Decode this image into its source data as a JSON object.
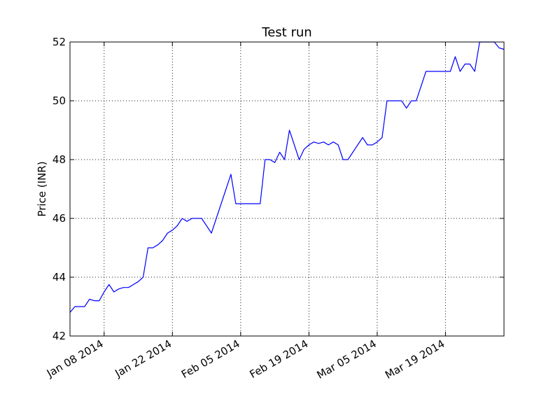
{
  "chart_data": {
    "type": "line",
    "title": "Test run",
    "xlabel": "",
    "ylabel": "Price (INR)",
    "ylim": [
      42,
      52
    ],
    "xlim": [
      "2014-01-01",
      "2014-03-31"
    ],
    "yticks": [
      "42",
      "44",
      "46",
      "48",
      "50",
      "52"
    ],
    "xticks": [
      "2014-01-08",
      "2014-01-22",
      "2014-02-05",
      "2014-02-19",
      "2014-03-05",
      "2014-03-19"
    ],
    "xtick_labels": [
      "Jan 08 2014",
      "Jan 22 2014",
      "Feb 05 2014",
      "Feb 19 2014",
      "Mar 05 2014",
      "Mar 19 2014"
    ],
    "grid": true,
    "legend": false,
    "color": "#0000ff",
    "series": [
      {
        "x": [
          "2014-01-01",
          "2014-01-02",
          "2014-01-03",
          "2014-01-04",
          "2014-01-05",
          "2014-01-06",
          "2014-01-07",
          "2014-01-08",
          "2014-01-09",
          "2014-01-10",
          "2014-01-11",
          "2014-01-12",
          "2014-01-13",
          "2014-01-14",
          "2014-01-15",
          "2014-01-16",
          "2014-01-17",
          "2014-01-18",
          "2014-01-19",
          "2014-01-20",
          "2014-01-21",
          "2014-01-22",
          "2014-01-23",
          "2014-01-24",
          "2014-01-25",
          "2014-01-26",
          "2014-01-27",
          "2014-01-28",
          "2014-01-29",
          "2014-01-30",
          "2014-01-31",
          "2014-02-01",
          "2014-02-02",
          "2014-02-03",
          "2014-02-04",
          "2014-02-05",
          "2014-02-06",
          "2014-02-07",
          "2014-02-08",
          "2014-02-09",
          "2014-02-10",
          "2014-02-11",
          "2014-02-12",
          "2014-02-13",
          "2014-02-14",
          "2014-02-15",
          "2014-02-16",
          "2014-02-17",
          "2014-02-18",
          "2014-02-19",
          "2014-02-20",
          "2014-02-21",
          "2014-02-22",
          "2014-02-23",
          "2014-02-24",
          "2014-02-25",
          "2014-02-26",
          "2014-02-27",
          "2014-02-28",
          "2014-03-01",
          "2014-03-02",
          "2014-03-03",
          "2014-03-04",
          "2014-03-05",
          "2014-03-06",
          "2014-03-07",
          "2014-03-08",
          "2014-03-09",
          "2014-03-10",
          "2014-03-11",
          "2014-03-12",
          "2014-03-13",
          "2014-03-14",
          "2014-03-15",
          "2014-03-16",
          "2014-03-17",
          "2014-03-18",
          "2014-03-19",
          "2014-03-20",
          "2014-03-21",
          "2014-03-22",
          "2014-03-23",
          "2014-03-24",
          "2014-03-25",
          "2014-03-26",
          "2014-03-27",
          "2014-03-28",
          "2014-03-29",
          "2014-03-30",
          "2014-03-31"
        ],
        "y": [
          42.8,
          43.0,
          43.0,
          43.0,
          43.25,
          43.2,
          43.2,
          43.5,
          43.75,
          43.5,
          43.6,
          43.65,
          43.65,
          43.75,
          43.85,
          44.0,
          45.0,
          45.0,
          45.1,
          45.25,
          45.5,
          45.6,
          45.75,
          46.0,
          45.9,
          46.0,
          46.0,
          46.0,
          45.75,
          45.5,
          46.0,
          46.5,
          47.0,
          47.5,
          46.5,
          46.5,
          46.5,
          46.5,
          46.5,
          46.5,
          48.0,
          48.0,
          47.9,
          48.25,
          48.0,
          49.0,
          48.5,
          48.0,
          48.35,
          48.5,
          48.6,
          48.55,
          48.6,
          48.5,
          48.6,
          48.5,
          48.0,
          48.0,
          48.25,
          48.5,
          48.75,
          48.5,
          48.5,
          48.6,
          48.75,
          50.0,
          50.0,
          50.0,
          50.0,
          49.75,
          50.0,
          50.0,
          50.5,
          51.0,
          51.0,
          51.0,
          51.0,
          51.0,
          51.0,
          51.5,
          51.0,
          51.25,
          51.25,
          51.0,
          52.0,
          52.0,
          52.0,
          52.0,
          51.8,
          51.75
        ]
      }
    ]
  }
}
